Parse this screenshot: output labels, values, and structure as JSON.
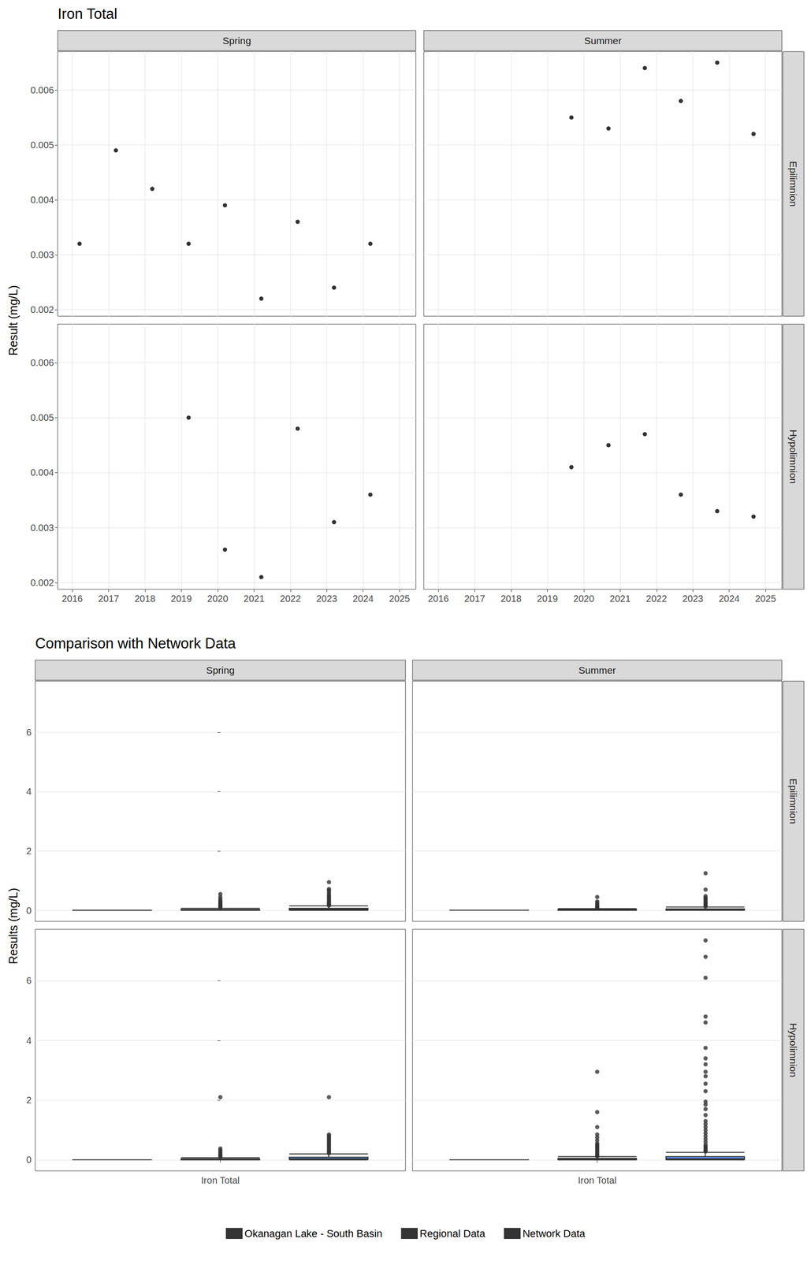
{
  "chart_data": [
    {
      "type": "scatter",
      "title": "Iron Total",
      "y_label": "Result (mg/L)",
      "columns": [
        "Spring",
        "Summer"
      ],
      "rows": [
        "Epilimnion",
        "Hypolimnion"
      ],
      "color": "#000000",
      "marker": "circle",
      "grid": true,
      "xlim": [
        2015.6,
        2025.45
      ],
      "xticks": [
        2016,
        2017,
        2018,
        2019,
        2020,
        2021,
        2022,
        2023,
        2024,
        2025
      ],
      "ylim": [
        0.00188,
        0.0067
      ],
      "yticks": [
        0.002,
        0.003,
        0.004,
        0.005,
        0.006
      ],
      "panels": [
        {
          "column": "Spring",
          "row": "Epilimnion",
          "x": [
            2016.2,
            2017.2,
            2018.2,
            2019.2,
            2020.2,
            2021.2,
            2022.2,
            2023.2,
            2024.2
          ],
          "values": [
            0.0032,
            0.0049,
            0.0042,
            0.0032,
            0.0039,
            0.0022,
            0.0036,
            0.0024,
            0.0032
          ]
        },
        {
          "column": "Summer",
          "row": "Epilimnion",
          "x": [
            2019.66,
            2020.68,
            2021.68,
            2022.67,
            2023.67,
            2024.67
          ],
          "values": [
            0.0055,
            0.0053,
            0.0064,
            0.0058,
            0.0065,
            0.0052
          ]
        },
        {
          "column": "Spring",
          "row": "Hypolimnion",
          "x": [
            2019.2,
            2020.2,
            2021.2,
            2022.2,
            2023.2,
            2024.2
          ],
          "values": [
            0.005,
            0.0026,
            0.0021,
            0.0048,
            0.0031,
            0.0036
          ]
        },
        {
          "column": "Summer",
          "row": "Hypolimnion",
          "x": [
            2019.66,
            2020.68,
            2021.68,
            2022.67,
            2023.67,
            2024.67
          ],
          "values": [
            0.0041,
            0.0045,
            0.0047,
            0.0036,
            0.0033,
            0.0032
          ]
        }
      ]
    },
    {
      "type": "boxplot",
      "title": "Comparison with Network Data",
      "y_label": "Results (mg/L)",
      "columns": [
        "Spring",
        "Summer"
      ],
      "rows": [
        "Epilimnion",
        "Hypolimnion"
      ],
      "categories": [
        "Iron Total"
      ],
      "grid": true,
      "legend": "bottom",
      "ylim": [
        -0.37,
        7.72
      ],
      "yticks": [
        0,
        2,
        4,
        6
      ],
      "series": [
        {
          "name": "Okanagan Lake - South Basin",
          "color": "#F8766D"
        },
        {
          "name": "Regional Data",
          "color": "#00BA38"
        },
        {
          "name": "Network Data",
          "color": "#619CFF"
        }
      ],
      "panels": [
        {
          "column": "Spring",
          "row": "Epilimnion",
          "boxes": [
            {
              "name": "Okanagan Lake - South Basin",
              "min": 0.0022,
              "q1": 0.0032,
              "median": 0.0032,
              "q3": 0.0039,
              "max": 0.0049,
              "outliers": []
            },
            {
              "name": "Regional Data",
              "min": 0,
              "q1": 0.005,
              "median": 0.012,
              "q3": 0.03,
              "max": 0.07,
              "outliers": [
                0.55,
                0.45,
                0.38,
                0.32,
                0.28,
                0.24,
                0.2,
                0.17,
                0.14,
                0.12,
                0.1
              ]
            },
            {
              "name": "Network Data",
              "min": 0,
              "q1": 0.015,
              "median": 0.035,
              "q3": 0.07,
              "max": 0.15,
              "outliers": [
                0.95,
                0.72,
                0.68,
                0.62,
                0.55,
                0.5,
                0.45,
                0.4,
                0.35,
                0.3,
                0.26,
                0.22,
                0.19,
                0.16
              ]
            }
          ]
        },
        {
          "column": "Summer",
          "row": "Epilimnion",
          "boxes": [
            {
              "name": "Okanagan Lake - South Basin",
              "min": 0.0052,
              "q1": 0.0053,
              "median": 0.00565,
              "q3": 0.00625,
              "max": 0.0065,
              "outliers": []
            },
            {
              "name": "Regional Data",
              "min": 0,
              "q1": 0.004,
              "median": 0.01,
              "q3": 0.025,
              "max": 0.055,
              "outliers": [
                0.45,
                0.3,
                0.25,
                0.2,
                0.15,
                0.12,
                0.1,
                0.08
              ]
            },
            {
              "name": "Network Data",
              "min": 0,
              "q1": 0.01,
              "median": 0.025,
              "q3": 0.05,
              "max": 0.11,
              "outliers": [
                1.25,
                0.7,
                0.48,
                0.42,
                0.38,
                0.33,
                0.28,
                0.24,
                0.2,
                0.16,
                0.13
              ]
            }
          ]
        },
        {
          "column": "Spring",
          "row": "Hypolimnion",
          "boxes": [
            {
              "name": "Okanagan Lake - South Basin",
              "min": 0.0021,
              "q1": 0.00275,
              "median": 0.00335,
              "q3": 0.0045,
              "max": 0.005,
              "outliers": []
            },
            {
              "name": "Regional Data",
              "min": 0,
              "q1": 0.005,
              "median": 0.012,
              "q3": 0.03,
              "max": 0.07,
              "outliers": [
                2.1,
                0.38,
                0.32,
                0.27,
                0.22,
                0.18,
                0.15,
                0.12,
                0.1
              ]
            },
            {
              "name": "Network Data",
              "min": 0,
              "q1": 0.02,
              "median": 0.04,
              "q3": 0.09,
              "max": 0.2,
              "outliers": [
                2.1,
                0.85,
                0.8,
                0.75,
                0.7,
                0.65,
                0.6,
                0.55,
                0.5,
                0.45,
                0.4,
                0.35,
                0.3,
                0.26,
                0.22
              ]
            }
          ]
        },
        {
          "column": "Summer",
          "row": "Hypolimnion",
          "boxes": [
            {
              "name": "Okanagan Lake - South Basin",
              "min": 0.0032,
              "q1": 0.00338,
              "median": 0.00385,
              "q3": 0.0044,
              "max": 0.0047,
              "outliers": []
            },
            {
              "name": "Regional Data",
              "min": 0,
              "q1": 0.008,
              "median": 0.02,
              "q3": 0.05,
              "max": 0.11,
              "outliers": [
                2.95,
                1.6,
                1.1,
                0.85,
                0.75,
                0.65,
                0.55,
                0.5,
                0.45,
                0.4,
                0.35,
                0.3,
                0.25,
                0.2,
                0.15,
                0.12
              ]
            },
            {
              "name": "Network Data",
              "min": 0,
              "q1": 0.015,
              "median": 0.04,
              "q3": 0.11,
              "max": 0.25,
              "outliers": [
                7.35,
                6.8,
                6.1,
                4.8,
                4.6,
                3.75,
                3.4,
                3.2,
                2.95,
                2.8,
                2.55,
                2.3,
                1.95,
                1.85,
                1.7,
                1.5,
                1.3,
                1.2,
                1.1,
                1.0,
                0.9,
                0.8,
                0.7,
                0.6,
                0.5,
                0.45,
                0.4,
                0.35,
                0.3,
                0.28
              ]
            }
          ]
        }
      ]
    }
  ]
}
